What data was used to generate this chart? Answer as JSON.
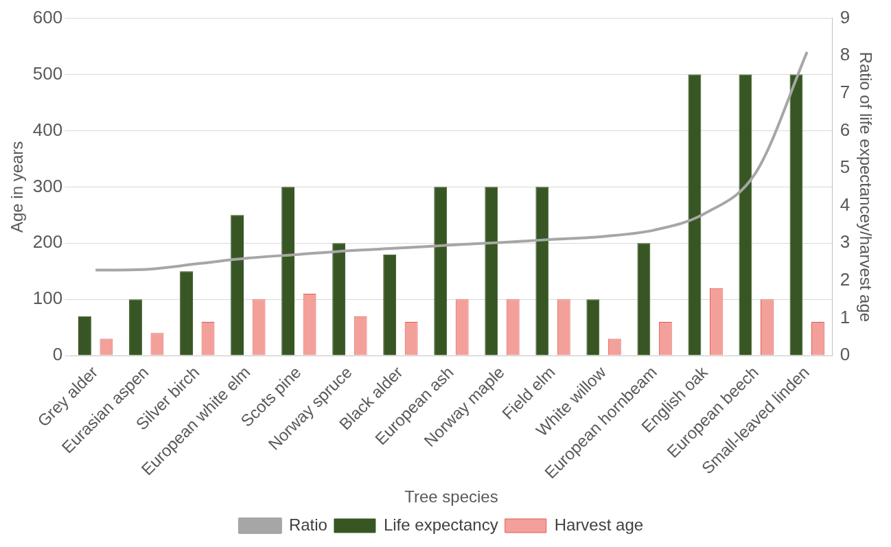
{
  "chart_data": {
    "type": "bar",
    "xlabel": "Tree species",
    "ylabel": "Age in years",
    "y2label": "Ratio of life expectancey/harvest age",
    "categories": [
      "Grey alder",
      "Eurasian aspen",
      "Silver birch",
      "European white elm",
      "Scots pine",
      "Norway spruce",
      "Black alder",
      "European ash",
      "Norway maple",
      "Field elm",
      "White willow",
      "European hornbeam",
      "English oak",
      "European beech",
      "Small-leaved linden"
    ],
    "series": [
      {
        "name": "Life expectancy",
        "color": "#375623",
        "values": [
          70,
          100,
          150,
          250,
          300,
          200,
          180,
          300,
          300,
          300,
          100,
          200,
          500,
          500,
          500
        ]
      },
      {
        "name": "Harvest age",
        "color": "#f4a09a",
        "values": [
          30,
          40,
          60,
          100,
          110,
          70,
          60,
          100,
          100,
          100,
          30,
          60,
          120,
          100,
          60
        ]
      },
      {
        "name": "Ratio",
        "type": "line",
        "axis": "y2",
        "color": "#a6a6a6",
        "values": [
          2.28,
          2.3,
          2.45,
          2.6,
          2.7,
          2.8,
          2.87,
          2.95,
          3.02,
          3.1,
          3.18,
          3.35,
          3.8,
          4.9,
          8.1
        ]
      }
    ],
    "ylim": [
      0,
      600
    ],
    "yticks": [
      0,
      100,
      200,
      300,
      400,
      500,
      600
    ],
    "y2lim": [
      0,
      9
    ],
    "y2ticks": [
      0,
      1,
      2,
      3,
      4,
      5,
      6,
      7,
      8,
      9
    ],
    "grid": "y",
    "legend": "bottom",
    "marker": "none"
  }
}
